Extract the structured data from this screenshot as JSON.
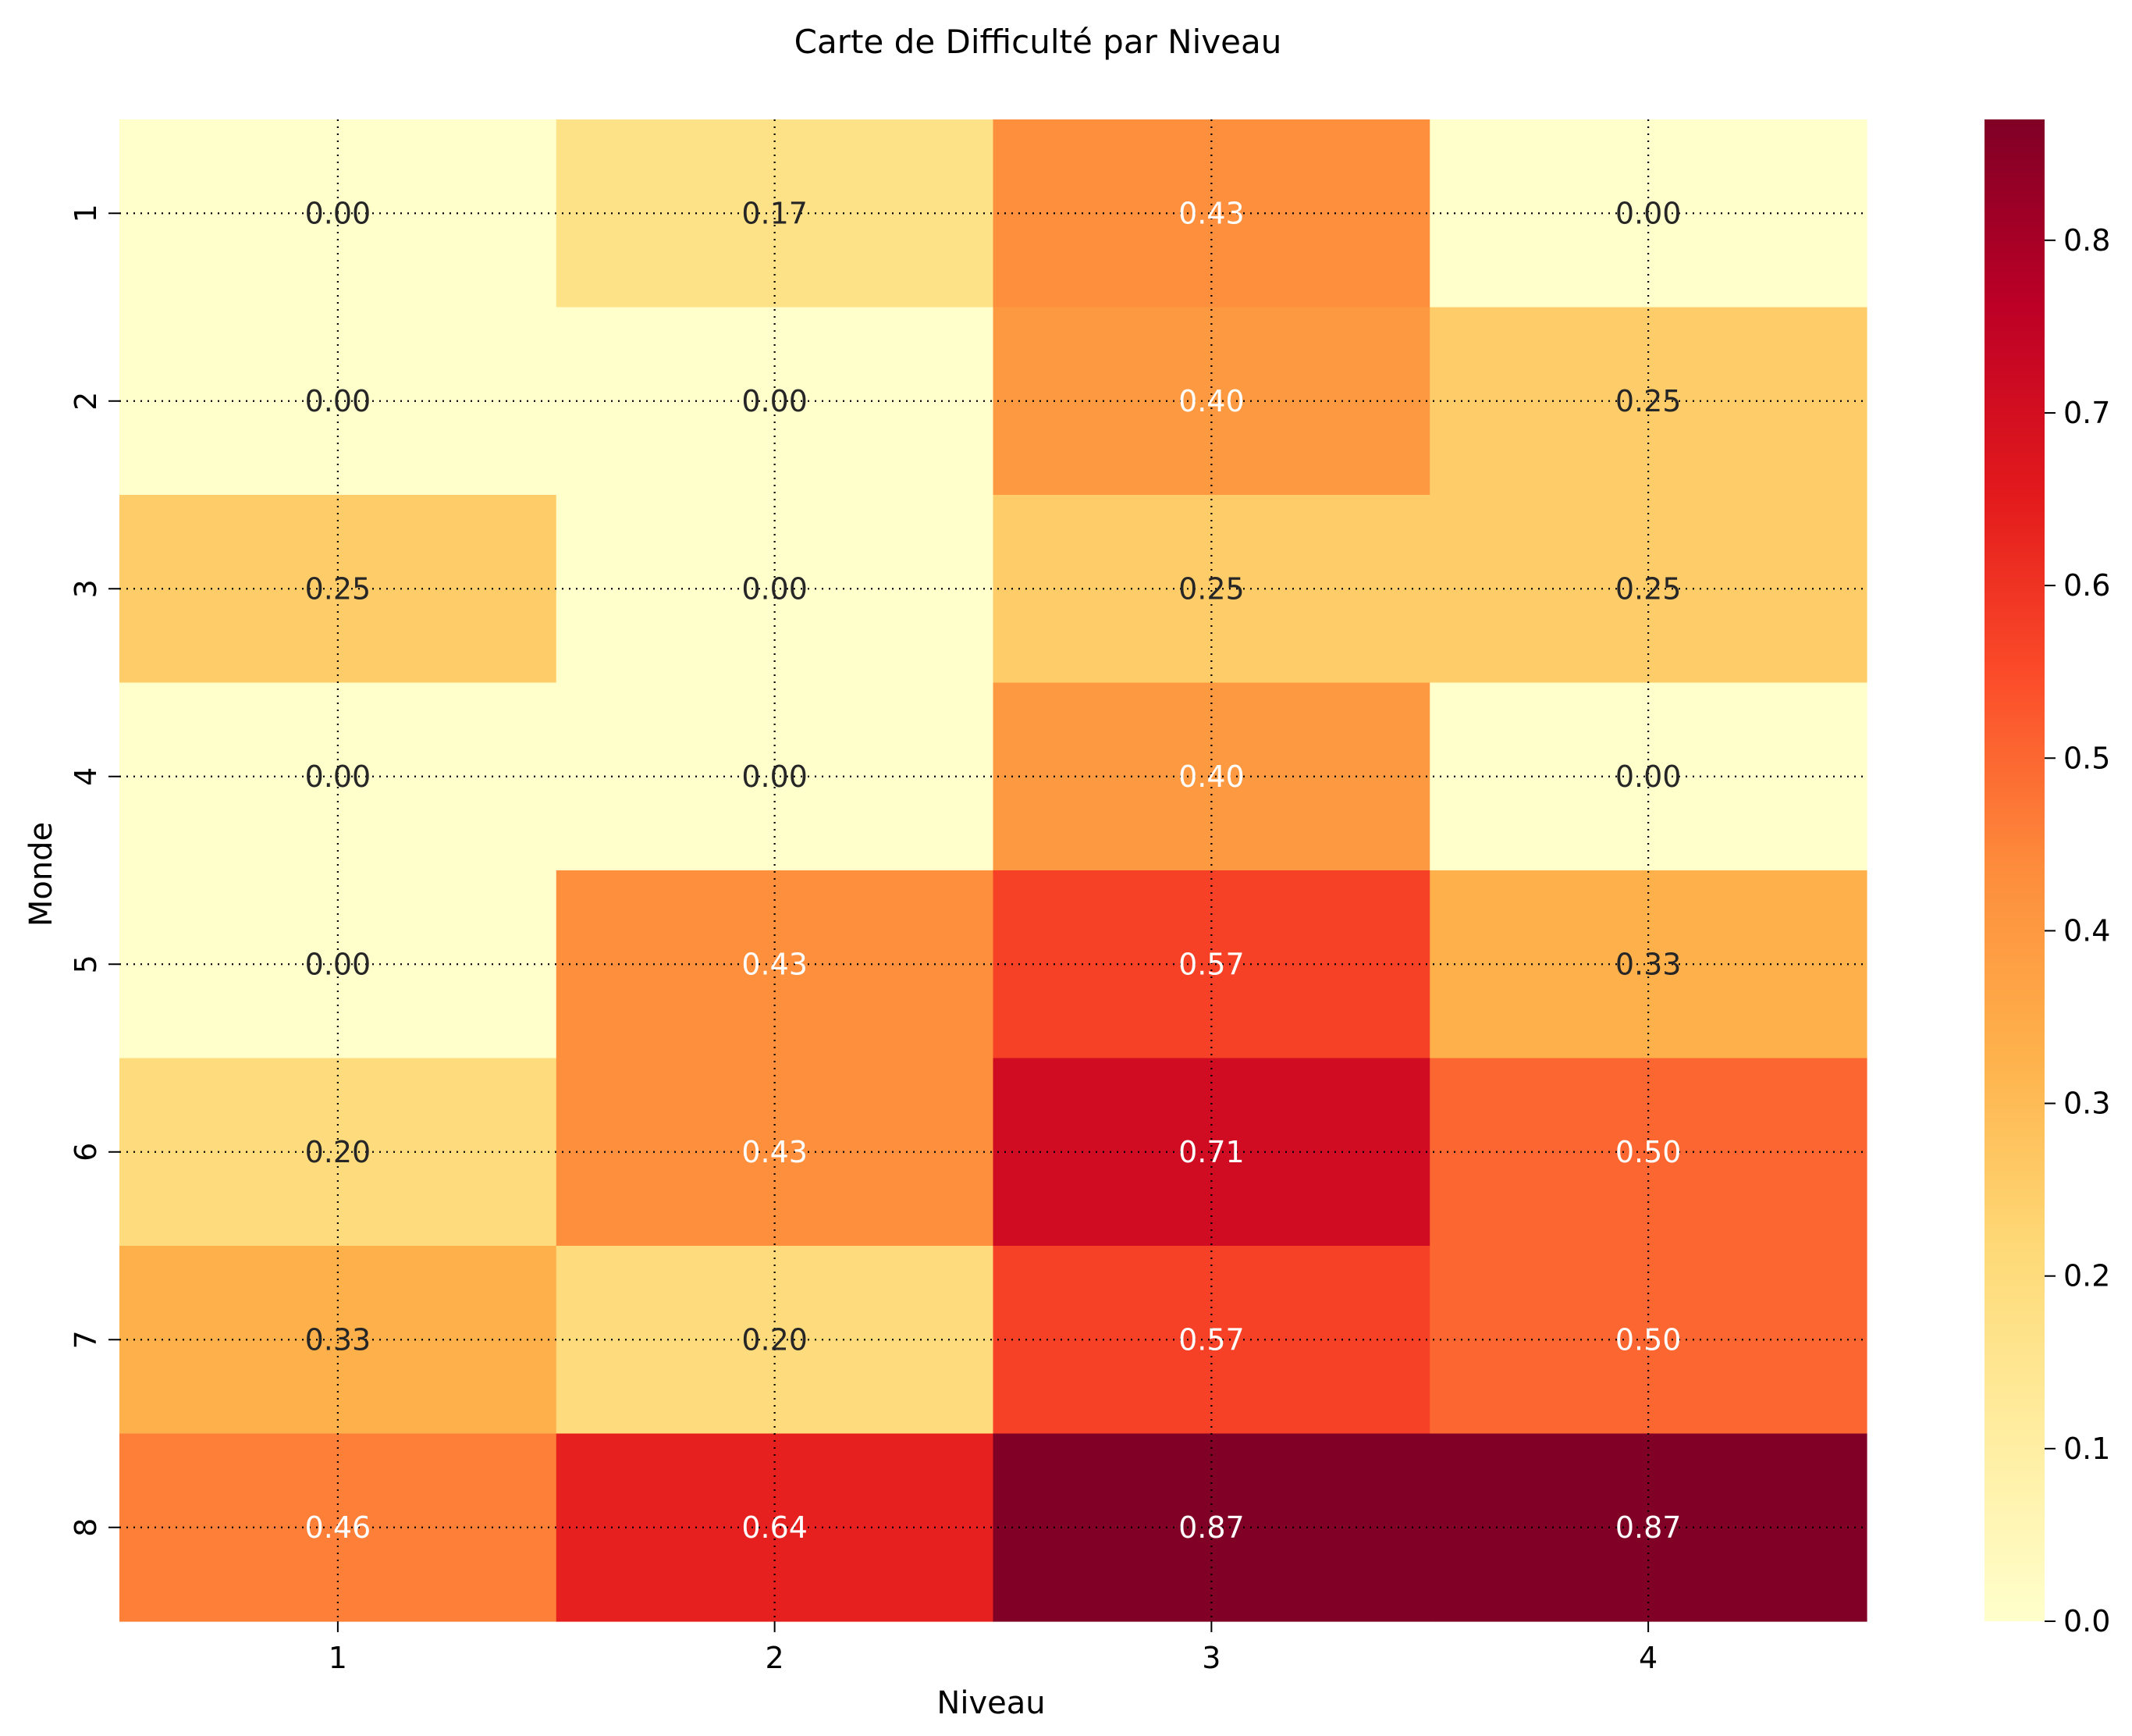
{
  "chart_data": {
    "type": "heatmap",
    "title": "Carte de Difficulté par Niveau",
    "xlabel": "Niveau",
    "ylabel": "Monde",
    "x_categories": [
      "1",
      "2",
      "3",
      "4"
    ],
    "y_categories": [
      "1",
      "2",
      "3",
      "4",
      "5",
      "6",
      "7",
      "8"
    ],
    "values": [
      [
        0.0,
        0.17,
        0.43,
        0.0
      ],
      [
        0.0,
        0.0,
        0.4,
        0.25
      ],
      [
        0.25,
        0.0,
        0.25,
        0.25
      ],
      [
        0.0,
        0.0,
        0.4,
        0.0
      ],
      [
        0.0,
        0.43,
        0.57,
        0.33
      ],
      [
        0.2,
        0.43,
        0.71,
        0.5
      ],
      [
        0.33,
        0.2,
        0.57,
        0.5
      ],
      [
        0.46,
        0.64,
        0.87,
        0.87
      ]
    ],
    "value_format": "2 decimals",
    "color_scale": {
      "name": "YlOrRd",
      "vmin": 0.0,
      "vmax": 0.87,
      "stops": [
        "#ffffcc",
        "#ffeda0",
        "#fed976",
        "#feb24c",
        "#fd8d3c",
        "#fc4e2a",
        "#e31a1c",
        "#bd0026",
        "#800026"
      ]
    },
    "colorbar_ticks": [
      "0.0",
      "0.1",
      "0.2",
      "0.3",
      "0.4",
      "0.5",
      "0.6",
      "0.7",
      "0.8"
    ],
    "grid": true,
    "legend": "colorbar-right"
  }
}
